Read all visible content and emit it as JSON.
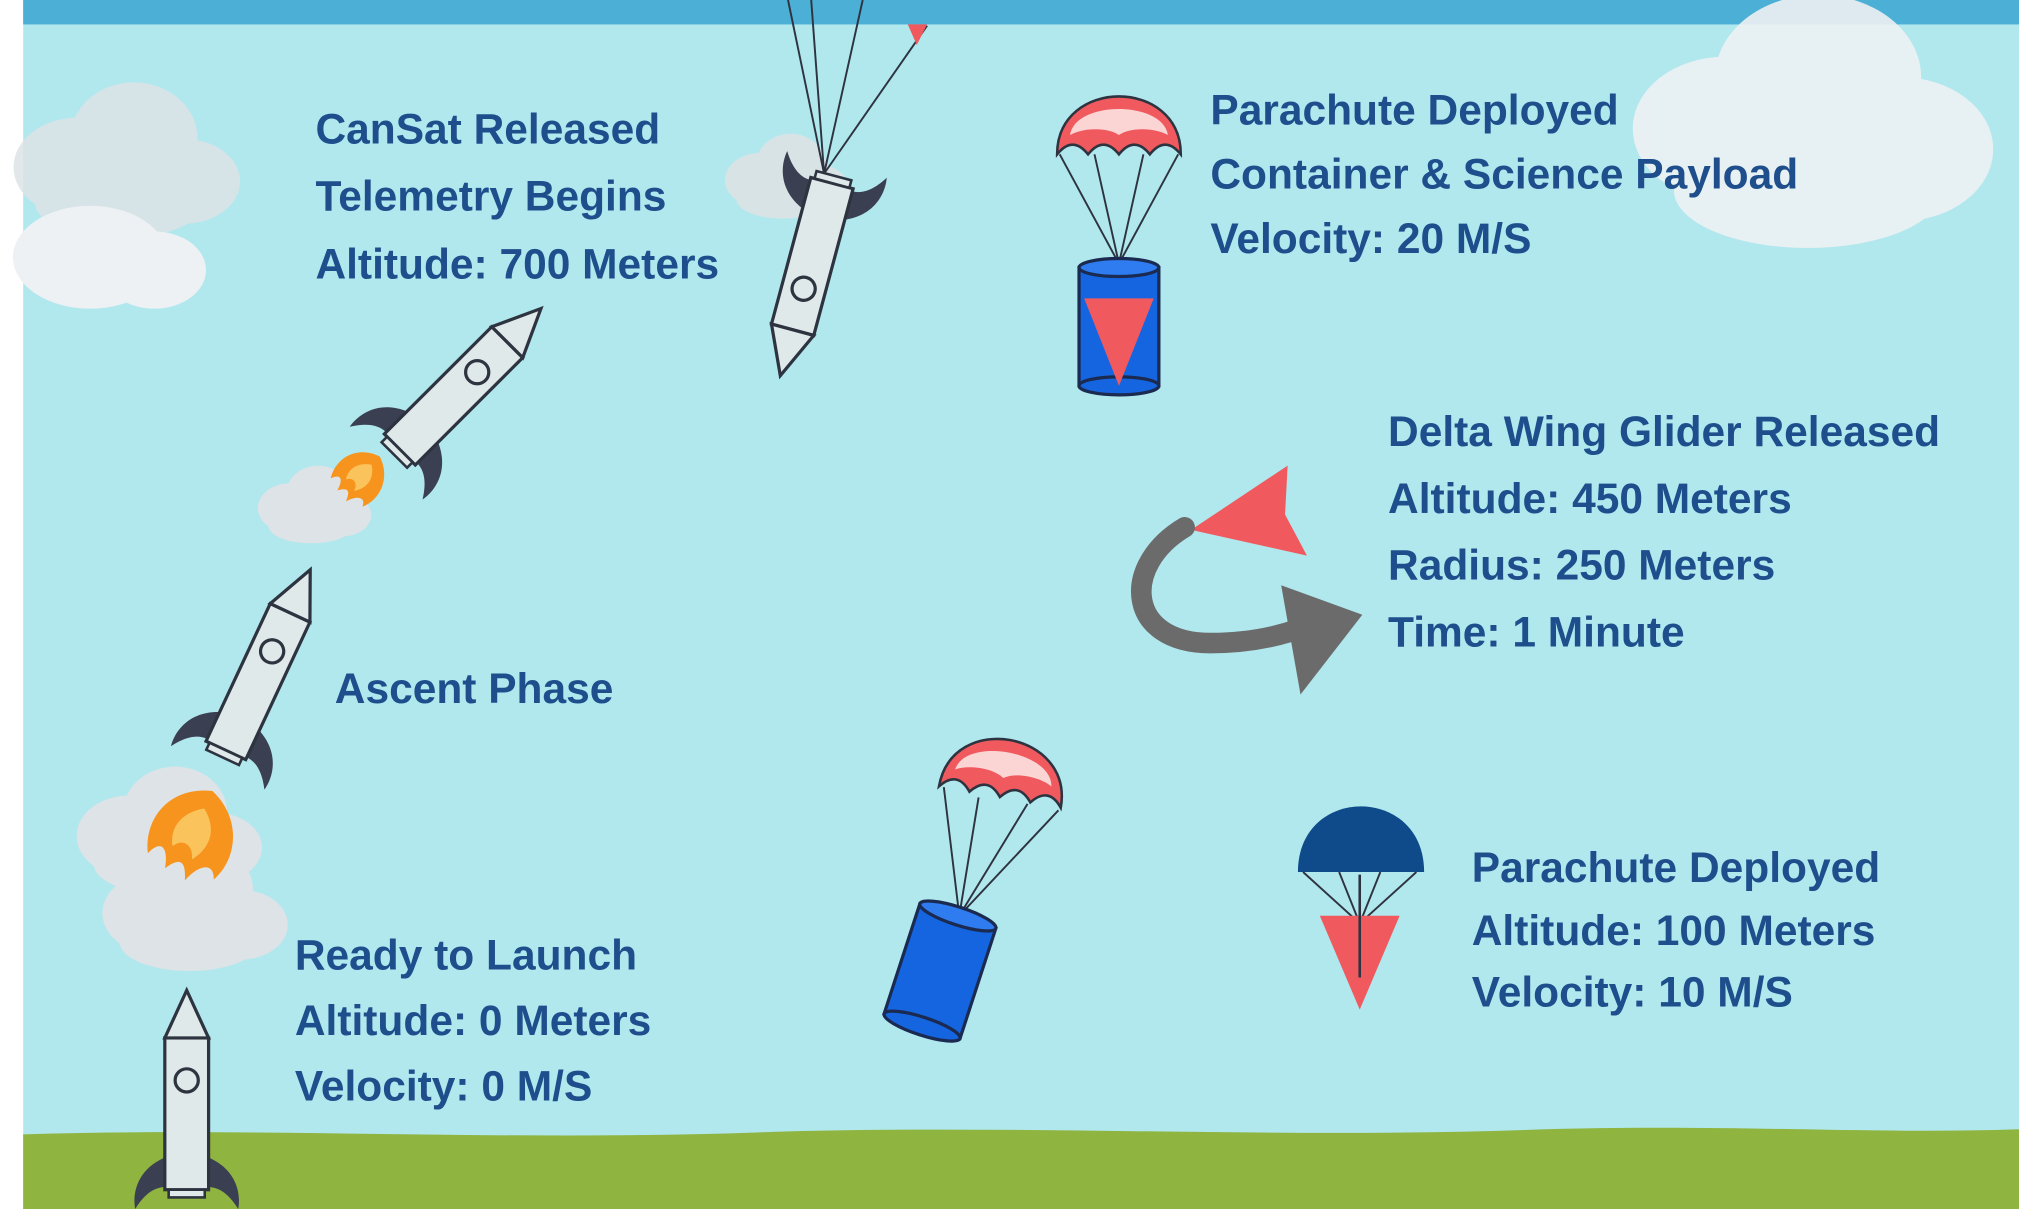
{
  "groups": [
    {
      "lines": [
        "CanSat Released",
        "Telemetry Begins",
        "Altitude: 700 Meters"
      ]
    },
    {
      "lines": [
        "Parachute Deployed",
        "Container & Science Payload",
        "Velocity: 20 M/S"
      ]
    },
    {
      "lines": [
        "Delta Wing Glider Released",
        "Altitude: 450 Meters",
        "Radius: 250 Meters",
        "Time: 1 Minute"
      ]
    },
    {
      "lines": [
        "Ascent Phase"
      ]
    },
    {
      "lines": [
        "Ready to Launch",
        "Altitude: 0 Meters",
        "Velocity: 0 M/S"
      ]
    },
    {
      "lines": [
        "Parachute Deployed",
        "Altitude: 100 Meters",
        "Velocity: 10 M/S"
      ]
    }
  ]
}
